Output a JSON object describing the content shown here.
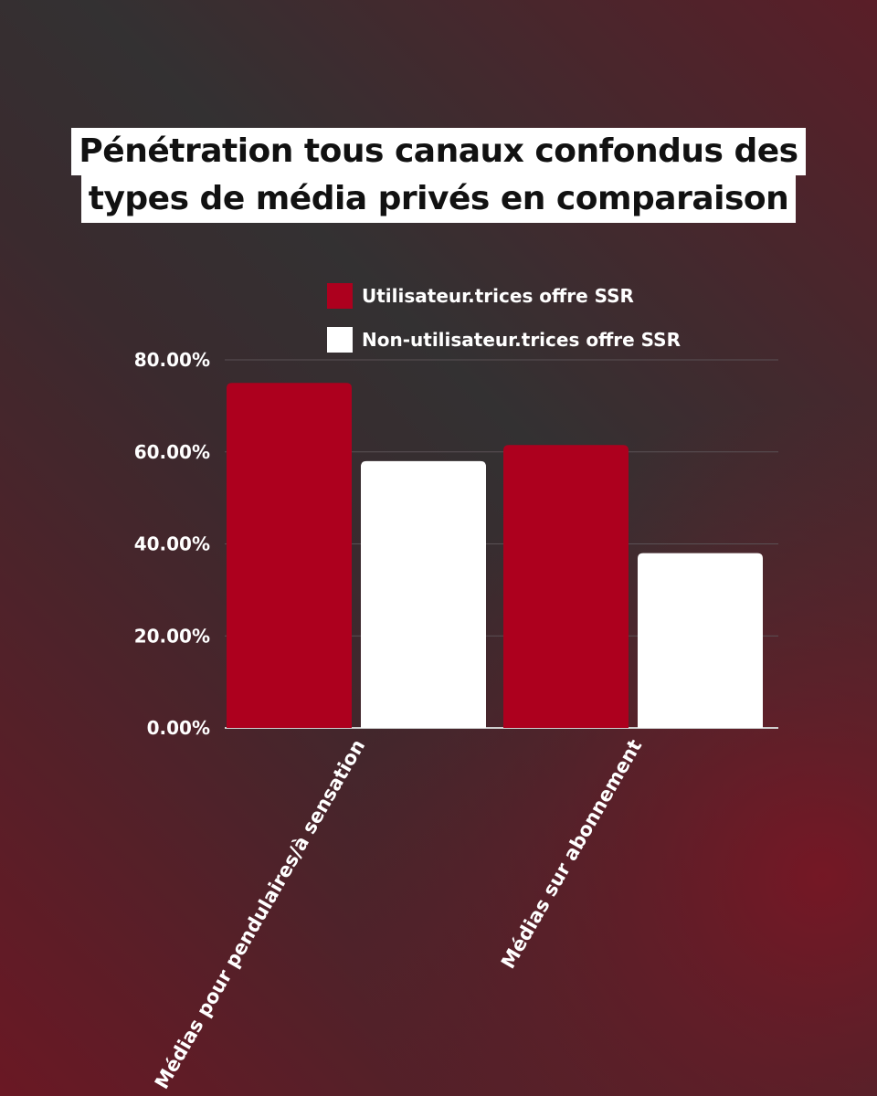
{
  "title_lines": [
    "Pénétration tous canaux confondus des",
    "types de média privés en comparaison"
  ],
  "colors": {
    "series_users": "#ad001e",
    "series_non_users": "#ffffff",
    "grid": "#5a5155",
    "text": "#ffffff"
  },
  "chart_data": {
    "type": "bar",
    "title": "Pénétration tous canaux confondus des types de média privés en comparaison",
    "categories": [
      "Médias pour pendulaires/à sensation",
      "Médias sur abonnement"
    ],
    "series": [
      {
        "name": "Utilisateur.trices offre SSR",
        "values": [
          75,
          61.5
        ]
      },
      {
        "name": "Non-utilisateur.trices offre SSR",
        "values": [
          58,
          38
        ]
      }
    ],
    "y_ticks": [
      0,
      20,
      40,
      60,
      80
    ],
    "y_tick_labels": [
      "0.00%",
      "20.00%",
      "40.00%",
      "60.00%",
      "80.00%"
    ],
    "ylim": [
      0,
      80
    ],
    "grid": true,
    "legend_position": "top"
  }
}
